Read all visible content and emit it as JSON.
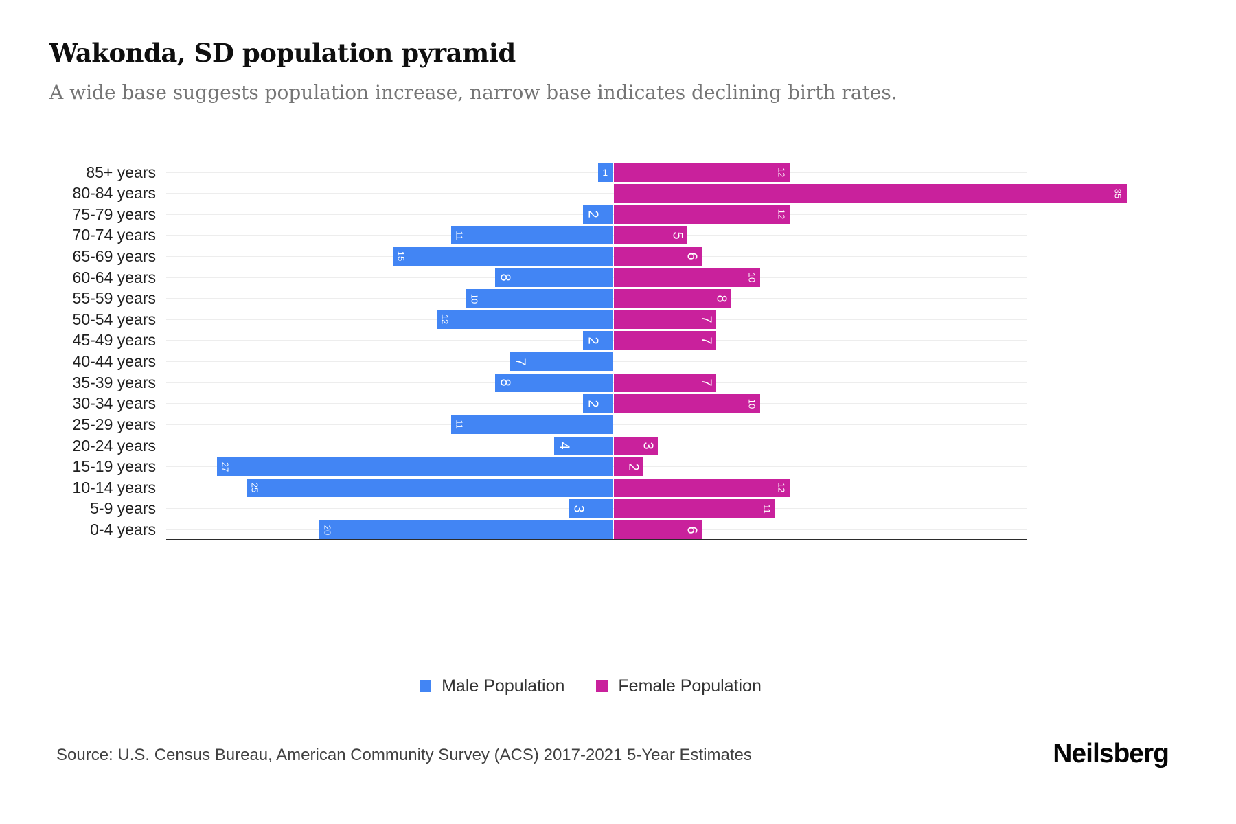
{
  "header": {
    "title": "Wakonda, SD population pyramid",
    "subtitle": "A wide base suggests population increase, narrow base indicates declining birth rates."
  },
  "chart_data": {
    "type": "bar",
    "variant": "population-pyramid-horizontal",
    "categories": [
      "85+ years",
      "80-84 years",
      "75-79 years",
      "70-74 years",
      "65-69 years",
      "60-64 years",
      "55-59 years",
      "50-54 years",
      "45-49 years",
      "40-44 years",
      "35-39 years",
      "30-34 years",
      "25-29 years",
      "20-24 years",
      "15-19 years",
      "10-14 years",
      "5-9 years",
      "0-4 years"
    ],
    "series": [
      {
        "name": "Male Population",
        "side": "left",
        "color": "#4285F4",
        "values": [
          1,
          0,
          2,
          11,
          15,
          8,
          10,
          12,
          2,
          7,
          8,
          2,
          11,
          4,
          27,
          25,
          3,
          20
        ]
      },
      {
        "name": "Female Population",
        "side": "right",
        "color": "#C9219C",
        "values": [
          12,
          35,
          12,
          5,
          6,
          10,
          8,
          7,
          7,
          0,
          7,
          10,
          0,
          3,
          2,
          12,
          11,
          6
        ]
      }
    ],
    "value_labels": "shown in white at outer end inside each bar; zero values have no bar and no label",
    "grid": true,
    "legend_position": "bottom-center"
  },
  "legend": {
    "male_label": "Male Population",
    "female_label": "Female Population"
  },
  "footer": {
    "source": "Source: U.S. Census Bureau, American Community Survey (ACS) 2017-2021 5-Year Estimates",
    "brand": "Neilsberg"
  },
  "colors": {
    "male": "#4285F4",
    "female": "#C9219C",
    "gridline": "#EDEDED",
    "axis": "#2B2B2B",
    "subtitle_text": "#757575",
    "age_label_text": "#1F1F1F"
  }
}
